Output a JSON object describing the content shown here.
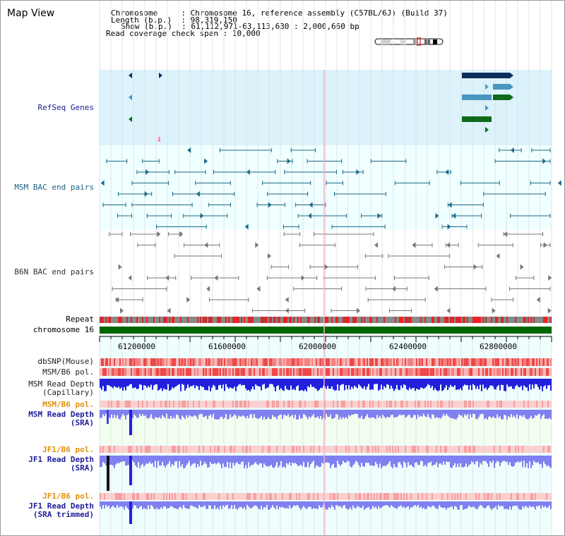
{
  "app": {
    "title": "Map View"
  },
  "info": {
    "chromosome_label": "Chromosome    ",
    "chromosome_value": "Chromosome 16, reference assembly (C57BL/6J) (Build 37)",
    "length_label": "Length (b.p.) ",
    "length_value": "98,319,150",
    "show_label": "Show (b.p.) ",
    "show_value": "61,112,971-63,113,630 : 2,000,660 bp",
    "coverage_label": "Read coverage check span",
    "coverage_value": "10,000"
  },
  "tracks": {
    "refseq": "RefSeq Genes",
    "msm_bac": "MSM BAC end pairs",
    "b6n_bac": "B6N BAC end pairs",
    "repeat": "Repeat",
    "chromosome": "chromosome 16",
    "dbsnp": "dbSNP(Mouse)",
    "msm_b6_pol": "MSM/B6 pol.",
    "msm_depth_cap_1": "MSM Read Depth",
    "msm_depth_cap_2": "(Capillary)",
    "msm_b6_pol_2": "MSM/B6 pol.",
    "msm_depth_sra_1": "MSM Read Depth",
    "msm_depth_sra_2": "(SRA)",
    "jf1_b6_pol": "JF1/B6 pol.",
    "jf1_depth_sra_1": "JF1 Read Depth",
    "jf1_depth_sra_2": "(SRA)",
    "jf1_b6_pol_2": "JF1/B6 pol.",
    "jf1_depth_trim_1": "JF1 Read Depth",
    "jf1_depth_trim_2": "(SRA trimmed)"
  },
  "axis": {
    "ticks": [
      "61200000",
      "61600000",
      "62000000",
      "62400000",
      "62800000"
    ]
  },
  "colors": {
    "refseq_bg": "#dcf3fc",
    "bac_bg": "#f0ffff",
    "repeat_red": "#ee2222",
    "chromosome_green": "#006600",
    "depth_blue": "#2020dd",
    "depth_lightblue": "#8080f0",
    "pol_red": "#f06060",
    "pol_light": "#f8b0b0"
  }
}
